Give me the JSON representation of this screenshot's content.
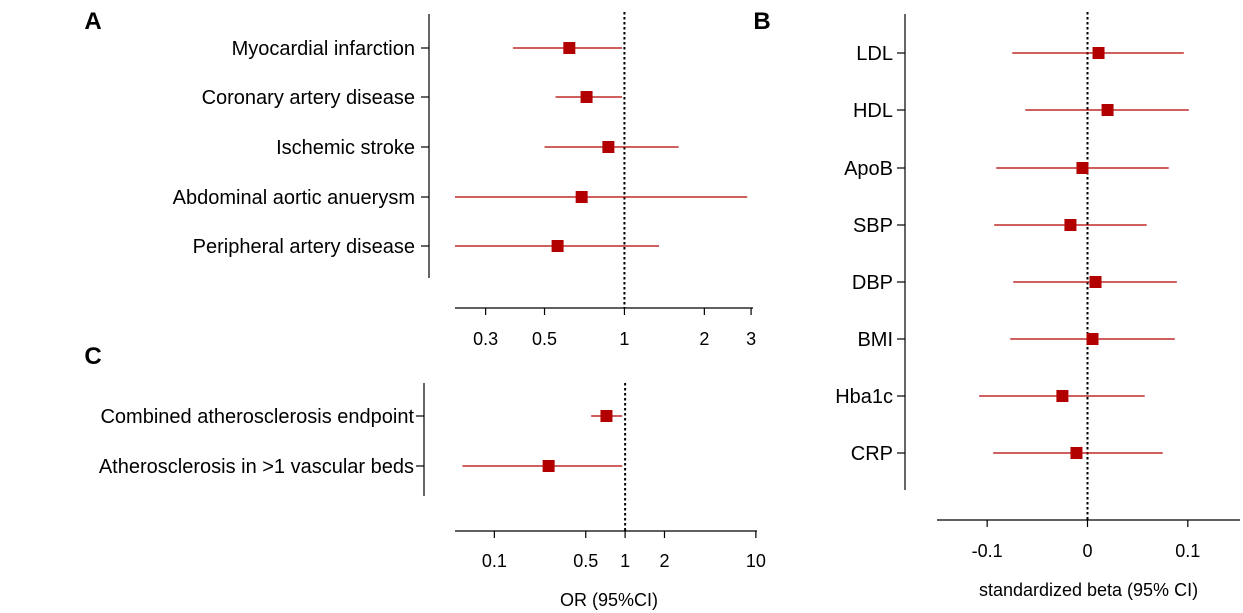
{
  "chart_data": [
    {
      "panel": "A",
      "type": "scatter",
      "subtype": "forest-plot",
      "scale": "log",
      "categories": [
        "Myocardial infarction",
        "Coronary artery disease",
        "Ischemic stroke",
        "Abdominal aortic anuerysm",
        "Peripheral artery disease"
      ],
      "estimate": [
        0.62,
        0.72,
        0.87,
        0.69,
        0.56
      ],
      "ci_low": [
        0.38,
        0.55,
        0.5,
        0.23,
        0.23
      ],
      "ci_high": [
        0.98,
        0.98,
        1.6,
        2.9,
        1.35
      ],
      "xticks": [
        0.3,
        0.5,
        1,
        2,
        3
      ],
      "xtick_labels": [
        "0.3",
        "0.5",
        "1",
        "2",
        "3"
      ],
      "xlim": [
        0.23,
        3.05
      ],
      "reference": 1,
      "xlabel": "",
      "color": "#b20000"
    },
    {
      "panel": "B",
      "type": "scatter",
      "subtype": "forest-plot",
      "scale": "linear",
      "categories": [
        "LDL",
        "HDL",
        "ApoB",
        "SBP",
        "DBP",
        "BMI",
        "Hba1c",
        "CRP"
      ],
      "estimate": [
        0.011,
        0.02,
        -0.005,
        -0.017,
        0.008,
        0.005,
        -0.025,
        -0.011
      ],
      "ci_low": [
        -0.075,
        -0.062,
        -0.091,
        -0.093,
        -0.074,
        -0.077,
        -0.108,
        -0.094
      ],
      "ci_high": [
        0.096,
        0.101,
        0.081,
        0.059,
        0.089,
        0.087,
        0.057,
        0.075
      ],
      "xticks": [
        -0.1,
        0,
        0.1
      ],
      "xtick_labels": [
        "-0.1",
        "0",
        "0.1"
      ],
      "xlim": [
        -0.15,
        0.152
      ],
      "reference": 0,
      "xlabel": "standardized beta (95% CI)",
      "color": "#b20000"
    },
    {
      "panel": "C",
      "type": "scatter",
      "subtype": "forest-plot",
      "scale": "log",
      "categories": [
        "Combined atherosclerosis endpoint",
        "Atherosclerosis in >1 vascular beds"
      ],
      "estimate": [
        0.72,
        0.26
      ],
      "ci_low": [
        0.55,
        0.057
      ],
      "ci_high": [
        0.95,
        0.95
      ],
      "xticks": [
        0.1,
        0.5,
        1,
        2,
        10
      ],
      "xtick_labels": [
        "0.1",
        "0.5",
        "1",
        "2",
        "10"
      ],
      "xlim": [
        0.05,
        10.2
      ],
      "reference": 1,
      "xlabel": "OR (95%CI)",
      "color": "#b20000"
    }
  ]
}
